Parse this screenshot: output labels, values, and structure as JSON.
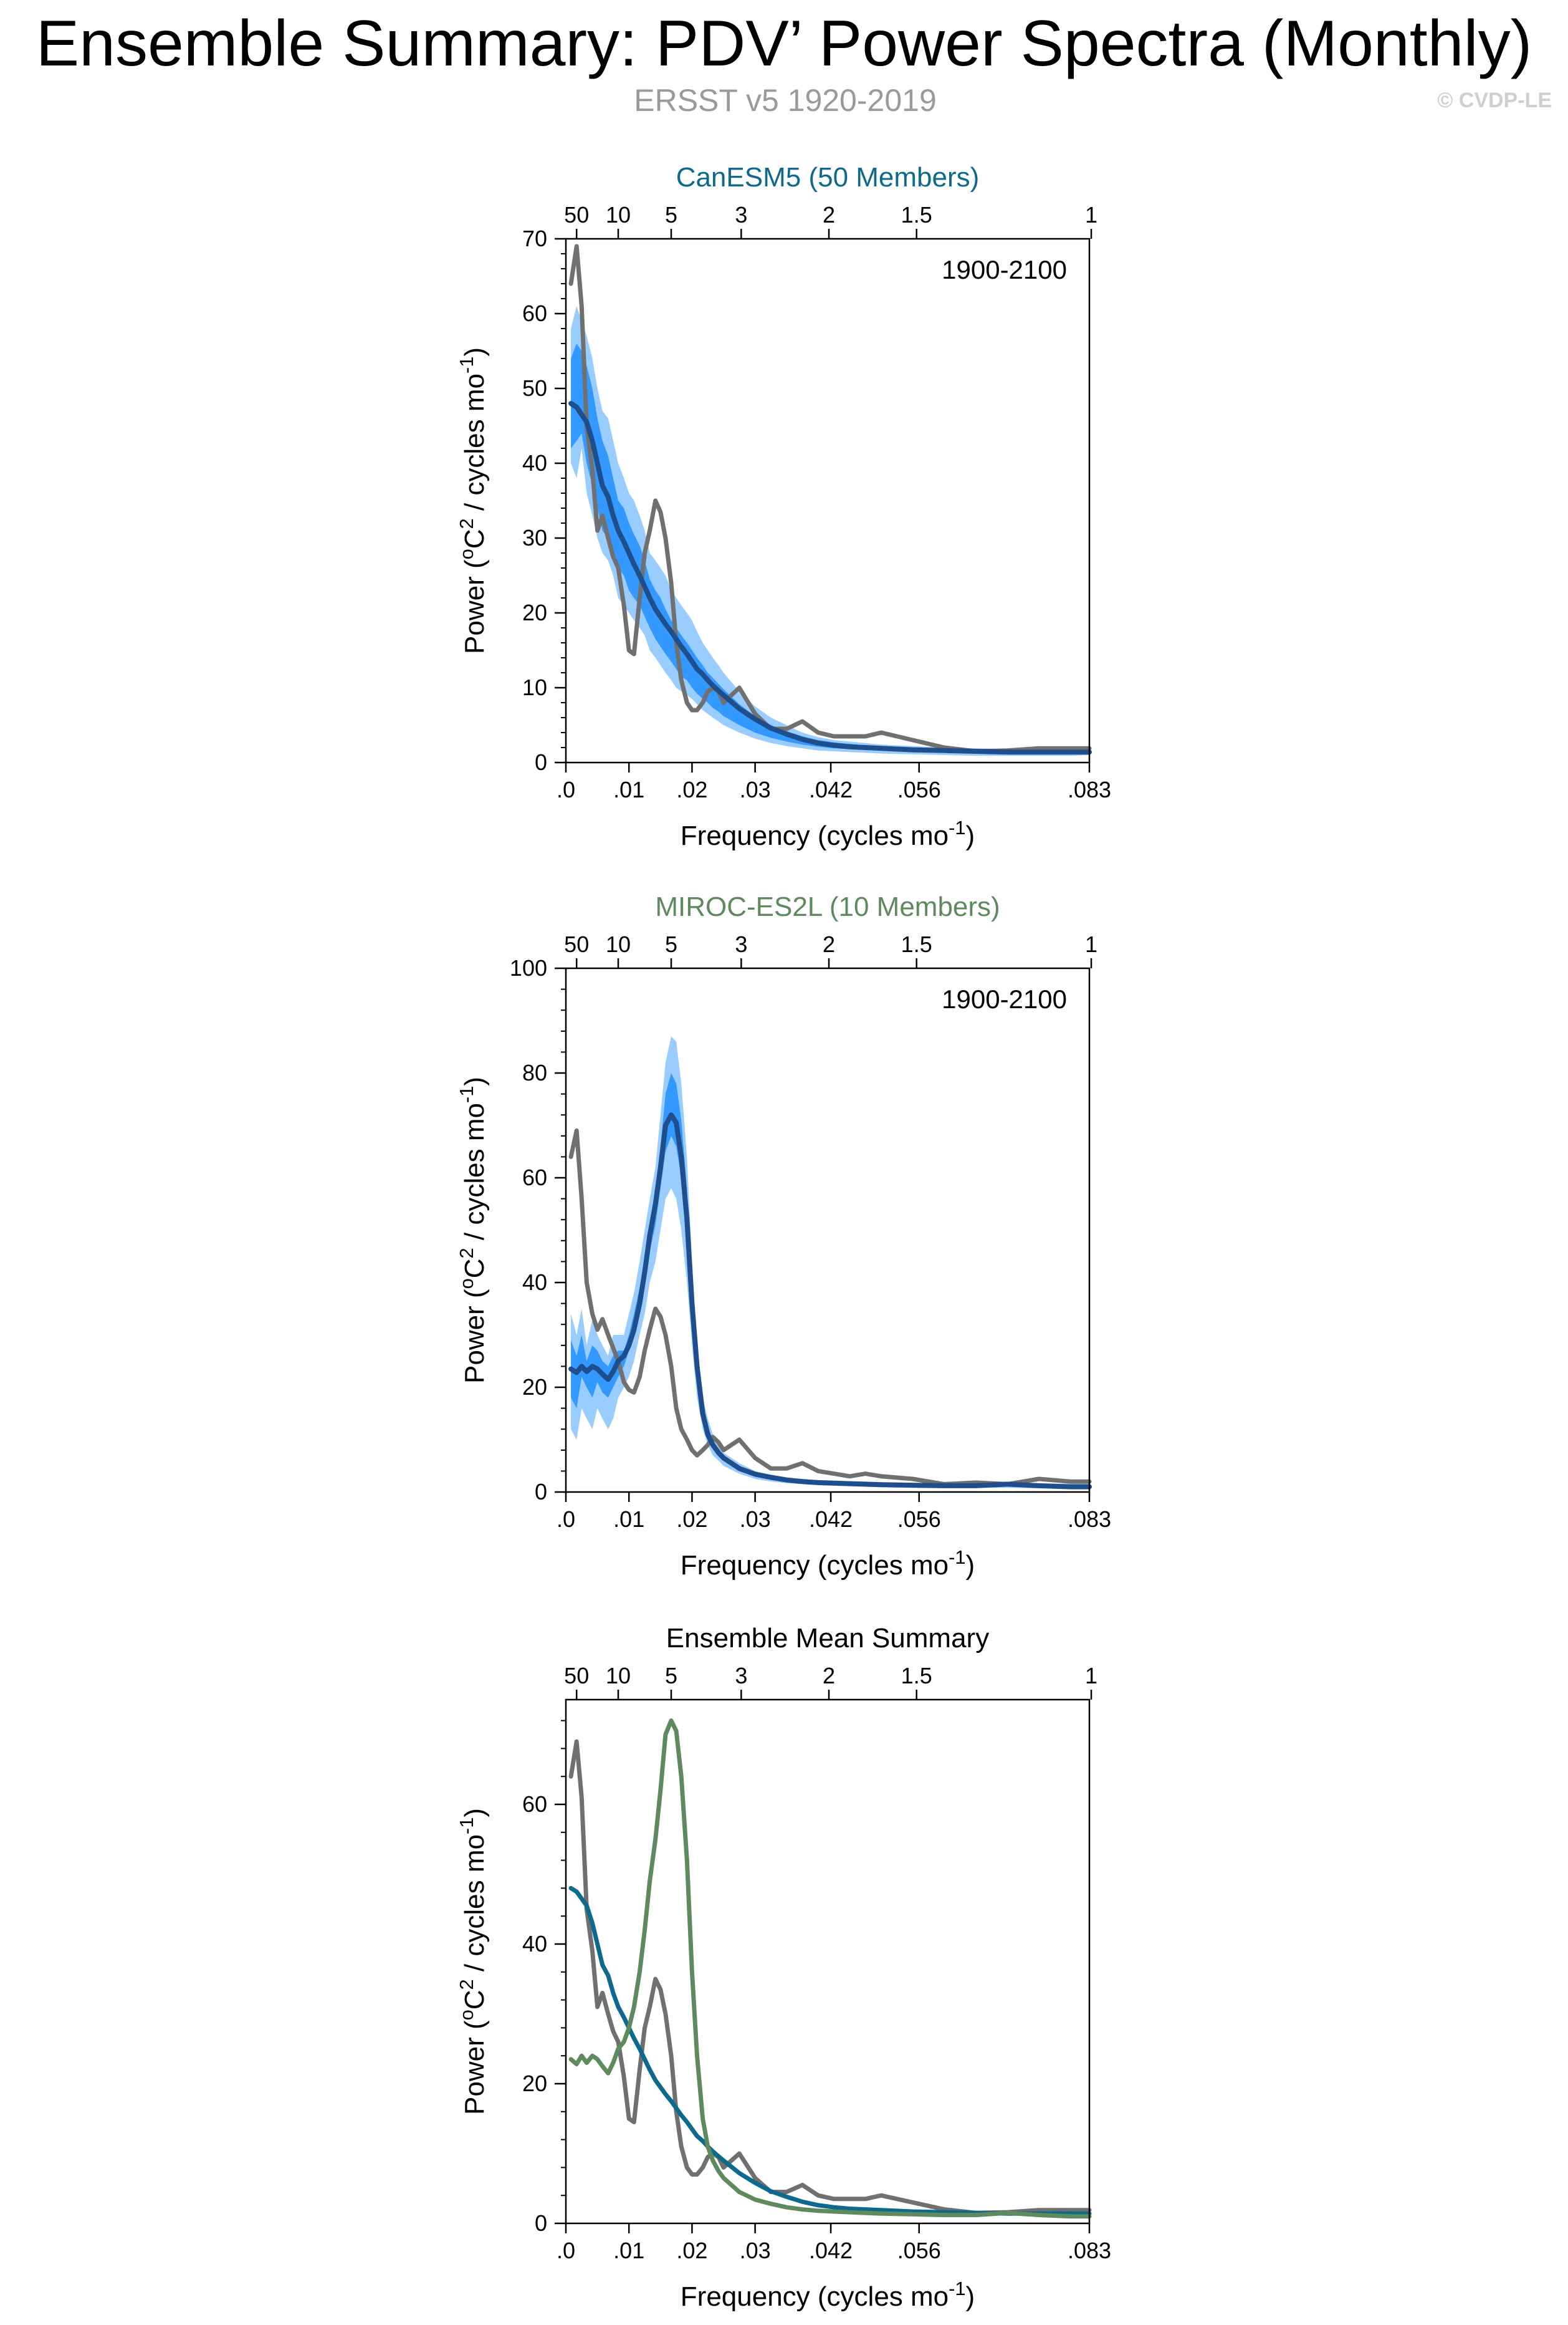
{
  "figure": {
    "title": "Ensemble Summary: PDV’ Power Spectra (Monthly)",
    "subtitle": "ERSST v5 1920-2019",
    "copyright": "© CVDP-LE"
  },
  "colors": {
    "observed": "#707070",
    "band_outer": "#99ccff",
    "band_inner": "#3399ff",
    "ensemble_mean": "#1f4e8c",
    "canesm5": "#0d6a8c",
    "miroc": "#5e8a5e"
  },
  "axes": {
    "xlabel": "Frequency (cycles mo",
    "xlabel_sup": "-1",
    "xlabel_end": ")",
    "ylabel_a": "Power (",
    "ylabel_sup1": "o",
    "ylabel_b": "C",
    "ylabel_sup2": "2",
    "ylabel_c": " / cycles mo",
    "ylabel_sup3": "-1",
    "ylabel_d": ")",
    "xlim": [
      0,
      0.083
    ],
    "bottom_ticks": [
      {
        "value": 0,
        "label": ".0"
      },
      {
        "value": 0.01,
        "label": ".01"
      },
      {
        "value": 0.02,
        "label": ".02"
      },
      {
        "value": 0.03,
        "label": ".03"
      },
      {
        "value": 0.042,
        "label": ".042"
      },
      {
        "value": 0.056,
        "label": ".056"
      },
      {
        "value": 0.083,
        "label": ".083"
      }
    ],
    "top_ticks": [
      {
        "value": 0.0017,
        "label": "50"
      },
      {
        "value": 0.0083,
        "label": "10"
      },
      {
        "value": 0.0167,
        "label": "5"
      },
      {
        "value": 0.0278,
        "label": "3"
      },
      {
        "value": 0.0417,
        "label": "2"
      },
      {
        "value": 0.0556,
        "label": "1.5"
      },
      {
        "value": 0.0833,
        "label": "1"
      }
    ]
  },
  "chart_data": [
    {
      "type": "line",
      "title": "CanESM5 (50 Members)",
      "title_color": "#0d6a8c",
      "period_label": "1900-2100",
      "ylim": [
        0,
        70
      ],
      "yticks": [
        0,
        10,
        20,
        30,
        40,
        50,
        60,
        70
      ],
      "x": [
        0.0008,
        0.0017,
        0.0025,
        0.0033,
        0.0042,
        0.005,
        0.0058,
        0.0067,
        0.0075,
        0.0083,
        0.0092,
        0.01,
        0.0108,
        0.0117,
        0.0125,
        0.0133,
        0.0142,
        0.015,
        0.0158,
        0.0167,
        0.0175,
        0.0183,
        0.0192,
        0.02,
        0.0208,
        0.0217,
        0.0225,
        0.0233,
        0.0242,
        0.025,
        0.0275,
        0.03,
        0.0325,
        0.035,
        0.0375,
        0.04,
        0.0425,
        0.045,
        0.0475,
        0.05,
        0.055,
        0.06,
        0.065,
        0.07,
        0.075,
        0.08,
        0.083
      ],
      "series": [
        {
          "name": "",
          "role": "p10",
          "values": [
            40,
            38,
            42,
            36,
            33,
            30,
            28,
            27,
            25,
            22,
            21,
            20,
            19,
            18,
            17,
            15,
            14,
            13,
            12,
            11,
            10,
            9.5,
            9,
            8.5,
            7.8,
            7,
            6.5,
            6,
            5.5,
            5,
            4,
            3.2,
            2.6,
            2.2,
            1.9,
            1.6,
            1.5,
            1.4,
            1.3,
            1.2,
            1.1,
            1.0,
            0.9,
            0.9,
            0.9,
            0.9,
            1.0
          ]
        },
        {
          "name": "",
          "role": "p90",
          "values": [
            58,
            61,
            59,
            57,
            54,
            50,
            47,
            46,
            43,
            40,
            38,
            36,
            35,
            33,
            31,
            28,
            27,
            26,
            25,
            23,
            22,
            21,
            20,
            19,
            17.5,
            16,
            15,
            14,
            13,
            12,
            9.5,
            7.5,
            6,
            5,
            4,
            3.4,
            3,
            2.8,
            2.6,
            2.4,
            2.2,
            2.0,
            1.9,
            1.8,
            1.8,
            1.8,
            1.8
          ]
        },
        {
          "name": "",
          "role": "p25",
          "values": [
            42,
            43,
            44,
            40,
            37,
            34,
            31,
            30,
            28,
            26,
            25,
            23,
            22,
            21,
            19.5,
            18,
            16.5,
            15.5,
            14.5,
            13.5,
            12.5,
            11.5,
            11,
            10,
            9.2,
            8.5,
            8,
            7.3,
            6.8,
            6.2,
            5,
            4,
            3.3,
            2.8,
            2.4,
            2.1,
            1.9,
            1.8,
            1.7,
            1.6,
            1.4,
            1.3,
            1.2,
            1.2,
            1.2,
            1.2,
            1.3
          ]
        },
        {
          "name": "",
          "role": "p75",
          "values": [
            54,
            56,
            55,
            53,
            50,
            46,
            43,
            41,
            38,
            35,
            34,
            32,
            30.5,
            29,
            27,
            24.5,
            23,
            22,
            20.5,
            19,
            18,
            17,
            16,
            15,
            14,
            13,
            12,
            11.3,
            10.5,
            9.8,
            7.8,
            6.2,
            5,
            4.2,
            3.5,
            3,
            2.7,
            2.5,
            2.3,
            2.1,
            1.9,
            1.8,
            1.7,
            1.6,
            1.6,
            1.6,
            1.6
          ]
        },
        {
          "name": "",
          "role": "mean",
          "values": [
            48,
            47.5,
            46.5,
            45.5,
            43,
            40,
            37,
            35.5,
            33,
            31,
            29.5,
            28,
            26.5,
            25,
            23.5,
            22,
            20.5,
            19.5,
            18.5,
            17.5,
            16.5,
            15.5,
            14.5,
            13.5,
            12.5,
            11.8,
            11,
            10.3,
            9.6,
            9,
            7.2,
            5.8,
            4.6,
            3.8,
            3.1,
            2.6,
            2.3,
            2.1,
            2.0,
            1.9,
            1.7,
            1.6,
            1.5,
            1.4,
            1.4,
            1.4,
            1.4
          ]
        }
      ]
    },
    {
      "type": "line",
      "title": "MIROC-ES2L (10 Members)",
      "title_color": "#5e8a5e",
      "period_label": "1900-2100",
      "ylim": [
        0,
        100
      ],
      "yticks": [
        0,
        20,
        40,
        60,
        80,
        100
      ],
      "x": [
        0.0008,
        0.0017,
        0.0025,
        0.0033,
        0.0042,
        0.005,
        0.0058,
        0.0067,
        0.0075,
        0.0083,
        0.0092,
        0.01,
        0.0108,
        0.0117,
        0.0125,
        0.0133,
        0.0142,
        0.015,
        0.0158,
        0.0167,
        0.0175,
        0.0183,
        0.0192,
        0.02,
        0.0208,
        0.0217,
        0.0225,
        0.0233,
        0.0242,
        0.025,
        0.0275,
        0.03,
        0.0325,
        0.035,
        0.0375,
        0.04,
        0.0425,
        0.045,
        0.0475,
        0.05,
        0.055,
        0.06,
        0.065,
        0.07,
        0.075,
        0.08,
        0.083
      ],
      "series": [
        {
          "name": "",
          "role": "p10",
          "values": [
            12,
            10,
            16,
            14,
            12,
            16,
            14,
            12,
            14,
            18,
            20,
            22,
            25,
            30,
            34,
            40,
            44,
            50,
            56,
            58,
            56,
            50,
            40,
            28,
            18,
            12,
            9,
            7,
            6,
            5,
            3.5,
            2.5,
            2,
            1.7,
            1.5,
            1.3,
            1.2,
            1.1,
            1.0,
            0.9,
            0.8,
            0.8,
            0.8,
            0.8,
            0.7,
            0.7,
            0.7
          ]
        },
        {
          "name": "",
          "role": "p90",
          "values": [
            34,
            30,
            35,
            28,
            33,
            30,
            28,
            26,
            30,
            30,
            30,
            34,
            38,
            44,
            50,
            56,
            62,
            72,
            82,
            87,
            86,
            78,
            64,
            44,
            28,
            18,
            14,
            11,
            9,
            7.5,
            5.5,
            4,
            3.3,
            2.8,
            2.5,
            2.2,
            2,
            1.9,
            1.8,
            1.7,
            1.6,
            1.6,
            1.6,
            1.6,
            1.6,
            1.6,
            1.6
          ]
        },
        {
          "name": "",
          "role": "p25",
          "values": [
            18,
            16,
            22,
            20,
            18,
            21,
            19,
            18,
            20,
            22,
            24,
            27,
            30,
            35,
            40,
            46,
            51,
            58,
            65,
            68,
            66,
            60,
            48,
            34,
            22,
            15,
            11,
            8.5,
            7,
            6,
            4.3,
            3.2,
            2.6,
            2.2,
            1.9,
            1.7,
            1.6,
            1.5,
            1.4,
            1.3,
            1.2,
            1.2,
            1.2,
            1.2,
            1.1,
            1.1,
            1.1
          ]
        },
        {
          "name": "",
          "role": "p75",
          "values": [
            29,
            26,
            30,
            25,
            28,
            27,
            25,
            24,
            26,
            27,
            27,
            30,
            34,
            39,
            45,
            51,
            57,
            66,
            76,
            80,
            78,
            71,
            58,
            40,
            26,
            16.5,
            12.5,
            10,
            8,
            6.8,
            5,
            3.7,
            3,
            2.5,
            2.2,
            2,
            1.8,
            1.7,
            1.6,
            1.5,
            1.4,
            1.4,
            1.4,
            1.4,
            1.4,
            1.4,
            1.4
          ]
        },
        {
          "name": "",
          "role": "mean",
          "values": [
            23.5,
            22.8,
            24,
            23,
            24,
            23.5,
            22.5,
            21.5,
            23,
            25,
            26,
            28,
            31,
            36,
            42,
            49,
            55,
            62,
            70,
            72,
            70.5,
            64,
            52,
            36,
            24,
            15,
            11,
            9,
            7.5,
            6.5,
            4.5,
            3.4,
            2.8,
            2.3,
            2,
            1.8,
            1.7,
            1.6,
            1.5,
            1.4,
            1.3,
            1.2,
            1.2,
            1.5,
            1.2,
            1.0,
            1.0
          ]
        },
        {
          "name": "",
          "role": "observed",
          "values": [
            64,
            69,
            56,
            40,
            34,
            31,
            33,
            30,
            27.5,
            25,
            21,
            19.5,
            19,
            22,
            27,
            31,
            35,
            33.5,
            30,
            24,
            16,
            12,
            10,
            8,
            7,
            8,
            9,
            10.5,
            9.5,
            8,
            10,
            6.5,
            4.5,
            4.5,
            5.5,
            4,
            3.5,
            3,
            3.5,
            3,
            2.5,
            1.5,
            1.8,
            1.5,
            2.5,
            2.0,
            2.0
          ]
        }
      ]
    },
    {
      "type": "line",
      "title": "Ensemble Mean Summary",
      "title_color": "#000000",
      "period_label": "",
      "ylim": [
        0,
        75
      ],
      "yticks": [
        0,
        20,
        40,
        60
      ],
      "x": [
        0.0008,
        0.0017,
        0.0025,
        0.0033,
        0.0042,
        0.005,
        0.0058,
        0.0067,
        0.0075,
        0.0083,
        0.0092,
        0.01,
        0.0108,
        0.0117,
        0.0125,
        0.0133,
        0.0142,
        0.015,
        0.0158,
        0.0167,
        0.0175,
        0.0183,
        0.0192,
        0.02,
        0.0208,
        0.0217,
        0.0225,
        0.0233,
        0.0242,
        0.025,
        0.0275,
        0.03,
        0.0325,
        0.035,
        0.0375,
        0.04,
        0.0425,
        0.045,
        0.0475,
        0.05,
        0.055,
        0.06,
        0.065,
        0.07,
        0.075,
        0.08,
        0.083
      ],
      "series": [
        {
          "name": "",
          "role": "observed",
          "values": [
            64,
            69,
            61,
            45,
            39,
            31,
            33,
            30,
            27.5,
            26,
            21,
            15,
            14.5,
            22,
            28,
            31,
            35,
            33.5,
            30,
            24,
            16,
            11,
            8,
            7,
            7,
            8,
            9.5,
            10,
            9.5,
            8,
            10,
            6.5,
            4.5,
            4.5,
            5.5,
            4,
            3.5,
            3.5,
            3.5,
            4,
            3,
            2,
            1.5,
            1.6,
            1.9,
            1.9,
            1.9
          ]
        },
        {
          "name": "",
          "role": "canesm5",
          "values": [
            48,
            47.5,
            46.5,
            45.5,
            43,
            40,
            37,
            35.5,
            33,
            31,
            29.5,
            28,
            26.5,
            25,
            23.5,
            22,
            20.5,
            19.5,
            18.5,
            17.5,
            16.5,
            15.5,
            14.5,
            13.5,
            12.5,
            11.8,
            11,
            10.3,
            9.6,
            9,
            7.2,
            5.8,
            4.6,
            3.8,
            3.1,
            2.6,
            2.3,
            2.1,
            2.0,
            1.9,
            1.7,
            1.6,
            1.5,
            1.4,
            1.4,
            1.4,
            1.4
          ]
        },
        {
          "name": "",
          "role": "miroc",
          "values": [
            23.5,
            22.8,
            24,
            23,
            24,
            23.5,
            22.5,
            21.5,
            23,
            25,
            26,
            28,
            31,
            36,
            42,
            49,
            55,
            62,
            70,
            72,
            70.5,
            64,
            52,
            36,
            24,
            15,
            11,
            9,
            7.5,
            6.5,
            4.5,
            3.4,
            2.8,
            2.3,
            2,
            1.8,
            1.7,
            1.6,
            1.5,
            1.4,
            1.3,
            1.2,
            1.2,
            1.5,
            1.2,
            1.0,
            1.0
          ]
        }
      ]
    }
  ]
}
